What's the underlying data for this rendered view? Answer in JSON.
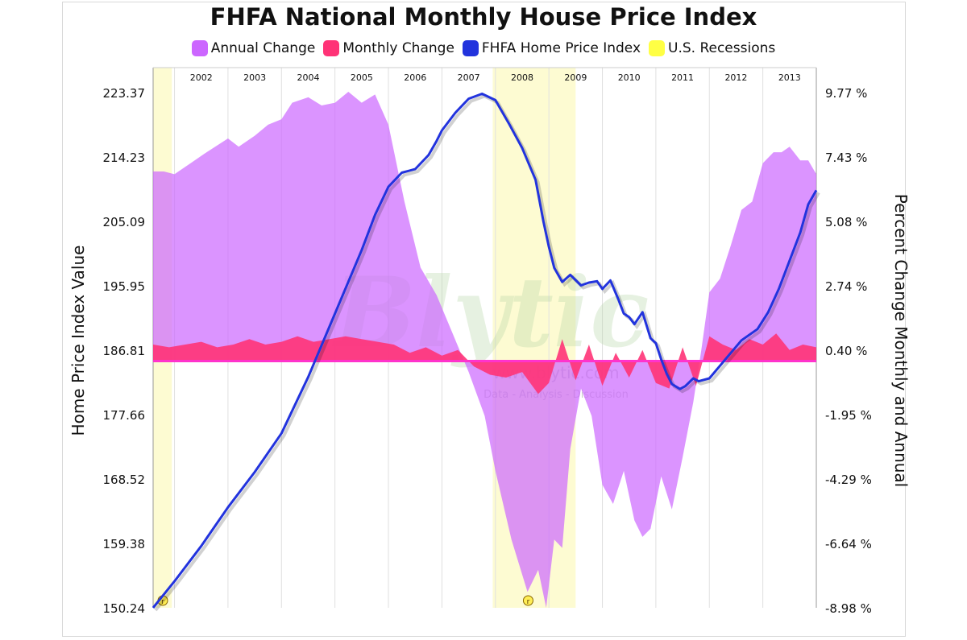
{
  "chart_data": {
    "type": "area",
    "title": "FHFA National Monthly House Price Index",
    "legend": [
      {
        "label": "Annual Change",
        "color": "#cc66ff"
      },
      {
        "label": "Monthly Change",
        "color": "#ff3377"
      },
      {
        "label": "FHFA Home Price Index",
        "color": "#2233dd"
      },
      {
        "label": "U.S. Recessions",
        "color": "#ffff44"
      }
    ],
    "ylabel_left": "Home Price Index Value",
    "ylabel_right": "Percent Change Monthly and Annual",
    "yticks_left": [
      "223.37",
      "214.23",
      "205.09",
      "195.95",
      "186.81",
      "177.66",
      "168.52",
      "159.38",
      "150.24"
    ],
    "yticks_right": [
      "9.77 %",
      "7.43 %",
      "5.08 %",
      "2.74 %",
      "0.40 %",
      "-1.95 %",
      "-4.29 %",
      "-6.64 %",
      "-8.98 %"
    ],
    "ylim_left": [
      150.24,
      223.37
    ],
    "ylim_right": [
      -8.98,
      9.77
    ],
    "x_labels": [
      "2002",
      "2003",
      "2004",
      "2005",
      "2006",
      "2007",
      "2008",
      "2009",
      "2010",
      "2011",
      "2012",
      "2013"
    ],
    "xlim": [
      2001.6,
      2014.0
    ],
    "grid": "vertical",
    "recessions": [
      [
        2001.6,
        2001.95
      ],
      [
        2007.95,
        2009.5
      ]
    ],
    "recession_marker": "r",
    "watermark": {
      "main": "Blytic",
      "url": "www.blytic.com",
      "tagline": "Data - Analysis - Discussion"
    },
    "series": [
      {
        "name": "FHFA Home Price Index",
        "axis": "left",
        "color": "#2233dd",
        "x": [
          2001.6,
          2002.0,
          2002.5,
          2003.0,
          2003.5,
          2004.0,
          2004.5,
          2005.0,
          2005.5,
          2005.75,
          2006.0,
          2006.25,
          2006.5,
          2006.75,
          2006.9,
          2007.0,
          2007.25,
          2007.5,
          2007.75,
          2008.0,
          2008.25,
          2008.5,
          2008.75,
          2008.9,
          2009.0,
          2009.1,
          2009.25,
          2009.4,
          2009.6,
          2009.75,
          2009.9,
          2010.0,
          2010.15,
          2010.3,
          2010.4,
          2010.5,
          2010.6,
          2010.75,
          2010.9,
          2011.0,
          2011.1,
          2011.2,
          2011.3,
          2011.45,
          2011.55,
          2011.7,
          2011.8,
          2012.0,
          2012.3,
          2012.6,
          2012.9,
          2013.1,
          2013.3,
          2013.5,
          2013.7,
          2013.85,
          2014.0
        ],
        "values": [
          150.24,
          154.0,
          159.0,
          164.5,
          169.5,
          175.0,
          183.0,
          192.0,
          201.0,
          206.0,
          210.0,
          212.0,
          212.5,
          214.5,
          216.5,
          218.0,
          220.5,
          222.5,
          223.2,
          222.3,
          219.0,
          215.5,
          211.0,
          205.0,
          201.5,
          198.5,
          196.5,
          197.5,
          196.0,
          196.4,
          196.6,
          195.5,
          196.7,
          194.0,
          192.0,
          191.5,
          190.5,
          192.2,
          188.5,
          187.8,
          185.5,
          183.5,
          182.0,
          181.3,
          181.7,
          182.8,
          182.4,
          182.8,
          185.5,
          188.2,
          189.8,
          192.2,
          195.5,
          199.5,
          203.5,
          207.5,
          209.5
        ]
      },
      {
        "name": "Annual Change",
        "axis": "right",
        "color": "#cc66ff",
        "x": [
          2001.6,
          2001.8,
          2002.0,
          2002.3,
          2002.6,
          2003.0,
          2003.2,
          2003.5,
          2003.75,
          2004.0,
          2004.2,
          2004.5,
          2004.75,
          2005.0,
          2005.25,
          2005.5,
          2005.75,
          2006.0,
          2006.3,
          2006.6,
          2006.9,
          2007.2,
          2007.5,
          2007.8,
          2008.0,
          2008.3,
          2008.6,
          2008.8,
          2008.95,
          2009.1,
          2009.25,
          2009.4,
          2009.6,
          2009.8,
          2010.0,
          2010.2,
          2010.4,
          2010.6,
          2010.75,
          2010.9,
          2011.1,
          2011.3,
          2011.5,
          2011.7,
          2011.85,
          2012.0,
          2012.2,
          2012.4,
          2012.6,
          2012.8,
          2013.0,
          2013.2,
          2013.35,
          2013.5,
          2013.7,
          2013.85,
          2014.0
        ],
        "values": [
          6.9,
          6.9,
          6.8,
          7.2,
          7.6,
          8.1,
          7.8,
          8.2,
          8.6,
          8.8,
          9.4,
          9.6,
          9.3,
          9.4,
          9.8,
          9.4,
          9.7,
          8.6,
          5.8,
          3.4,
          2.4,
          1.0,
          -0.4,
          -2.0,
          -4.0,
          -6.5,
          -8.4,
          -7.6,
          -8.98,
          -6.5,
          -6.8,
          -3.2,
          -1.0,
          -2.0,
          -4.5,
          -5.2,
          -4.0,
          -5.8,
          -6.4,
          -6.1,
          -4.2,
          -5.4,
          -3.5,
          -1.5,
          0.4,
          2.5,
          3.0,
          4.2,
          5.5,
          5.8,
          7.2,
          7.6,
          7.6,
          7.8,
          7.3,
          7.3,
          6.8
        ]
      },
      {
        "name": "Monthly Change",
        "axis": "right",
        "color": "#ff3377",
        "x": [
          2001.6,
          2001.9,
          2002.2,
          2002.5,
          2002.8,
          2003.1,
          2003.4,
          2003.7,
          2004.0,
          2004.3,
          2004.6,
          2004.9,
          2005.2,
          2005.5,
          2005.8,
          2006.1,
          2006.4,
          2006.7,
          2007.0,
          2007.3,
          2007.6,
          2007.9,
          2008.2,
          2008.5,
          2008.8,
          2009.0,
          2009.25,
          2009.5,
          2009.75,
          2010.0,
          2010.25,
          2010.5,
          2010.75,
          2011.0,
          2011.25,
          2011.5,
          2011.75,
          2012.0,
          2012.25,
          2012.5,
          2012.75,
          2013.0,
          2013.25,
          2013.5,
          2013.75,
          2014.0
        ],
        "values": [
          0.6,
          0.5,
          0.6,
          0.7,
          0.5,
          0.6,
          0.8,
          0.6,
          0.7,
          0.9,
          0.7,
          0.8,
          0.9,
          0.8,
          0.7,
          0.6,
          0.3,
          0.5,
          0.2,
          0.4,
          -0.2,
          -0.5,
          -0.6,
          -0.4,
          -1.2,
          -0.8,
          0.8,
          -0.7,
          0.6,
          -0.9,
          0.3,
          -0.6,
          0.4,
          -0.8,
          -1.0,
          0.5,
          -0.9,
          0.9,
          0.6,
          0.4,
          0.8,
          0.6,
          1.0,
          0.4,
          0.6,
          0.5
        ]
      }
    ]
  }
}
